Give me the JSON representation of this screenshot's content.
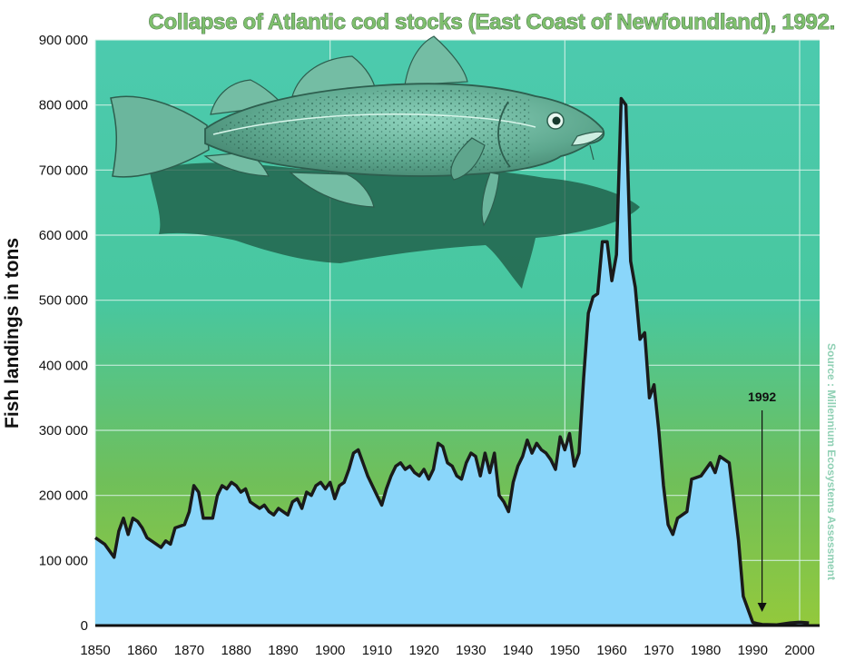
{
  "chart_data": {
    "type": "area",
    "title": "Collapse of Atlantic cod stocks (East Coast of Newfoundland), 1992.",
    "ylabel": "Fish landings in tons",
    "xlabel": "",
    "source": "Source : Millennium Ecosystems Assessment",
    "annotation": {
      "label": "1992",
      "x": 1992
    },
    "xlim": [
      1850,
      2003
    ],
    "ylim": [
      0,
      900000
    ],
    "x_ticks": [
      1850,
      1860,
      1870,
      1880,
      1890,
      1900,
      1910,
      1920,
      1930,
      1940,
      1950,
      1960,
      1970,
      1980,
      1990,
      2000
    ],
    "y_ticks": [
      0,
      100000,
      200000,
      300000,
      400000,
      500000,
      600000,
      700000,
      800000,
      900000
    ],
    "x_tick_labels": [
      "1850",
      "1860",
      "1870",
      "1880",
      "1890",
      "1900",
      "1910",
      "1920",
      "1930",
      "1940",
      "1950",
      "1960",
      "1970",
      "1980",
      "1990",
      "2000"
    ],
    "y_tick_labels": [
      "0",
      "100 000",
      "200 000",
      "300 000",
      "400 000",
      "500 000",
      "600 000",
      "700 000",
      "800 000",
      "900 000"
    ],
    "grid": true,
    "colors": {
      "area_fill": "#8ad6fa",
      "line": "#1a1a1a",
      "background_top": "#49c9ae",
      "background_bottom": "#8cc63e",
      "grid": "#d8f2e8"
    },
    "series": [
      {
        "values": [
          [
            1850,
            135000
          ],
          [
            1852,
            125000
          ],
          [
            1854,
            105000
          ],
          [
            1855,
            145000
          ],
          [
            1856,
            165000
          ],
          [
            1857,
            140000
          ],
          [
            1858,
            165000
          ],
          [
            1859,
            160000
          ],
          [
            1860,
            150000
          ],
          [
            1861,
            135000
          ],
          [
            1863,
            125000
          ],
          [
            1864,
            120000
          ],
          [
            1865,
            130000
          ],
          [
            1866,
            125000
          ],
          [
            1867,
            150000
          ],
          [
            1869,
            155000
          ],
          [
            1870,
            175000
          ],
          [
            1871,
            215000
          ],
          [
            1872,
            205000
          ],
          [
            1873,
            165000
          ],
          [
            1875,
            165000
          ],
          [
            1876,
            200000
          ],
          [
            1877,
            215000
          ],
          [
            1878,
            210000
          ],
          [
            1879,
            220000
          ],
          [
            1880,
            215000
          ],
          [
            1881,
            205000
          ],
          [
            1882,
            210000
          ],
          [
            1883,
            190000
          ],
          [
            1884,
            185000
          ],
          [
            1885,
            180000
          ],
          [
            1886,
            185000
          ],
          [
            1887,
            175000
          ],
          [
            1888,
            170000
          ],
          [
            1889,
            180000
          ],
          [
            1890,
            175000
          ],
          [
            1891,
            170000
          ],
          [
            1892,
            190000
          ],
          [
            1893,
            195000
          ],
          [
            1894,
            180000
          ],
          [
            1895,
            205000
          ],
          [
            1896,
            200000
          ],
          [
            1897,
            215000
          ],
          [
            1898,
            220000
          ],
          [
            1899,
            210000
          ],
          [
            1900,
            220000
          ],
          [
            1901,
            195000
          ],
          [
            1902,
            215000
          ],
          [
            1903,
            220000
          ],
          [
            1904,
            240000
          ],
          [
            1905,
            265000
          ],
          [
            1906,
            270000
          ],
          [
            1907,
            250000
          ],
          [
            1908,
            230000
          ],
          [
            1909,
            215000
          ],
          [
            1910,
            200000
          ],
          [
            1911,
            185000
          ],
          [
            1912,
            210000
          ],
          [
            1913,
            230000
          ],
          [
            1914,
            245000
          ],
          [
            1915,
            250000
          ],
          [
            1916,
            240000
          ],
          [
            1917,
            245000
          ],
          [
            1918,
            235000
          ],
          [
            1919,
            230000
          ],
          [
            1920,
            240000
          ],
          [
            1921,
            225000
          ],
          [
            1922,
            240000
          ],
          [
            1923,
            280000
          ],
          [
            1924,
            275000
          ],
          [
            1925,
            250000
          ],
          [
            1926,
            245000
          ],
          [
            1927,
            230000
          ],
          [
            1928,
            225000
          ],
          [
            1929,
            250000
          ],
          [
            1930,
            265000
          ],
          [
            1931,
            260000
          ],
          [
            1932,
            230000
          ],
          [
            1933,
            265000
          ],
          [
            1934,
            235000
          ],
          [
            1935,
            265000
          ],
          [
            1936,
            200000
          ],
          [
            1937,
            190000
          ],
          [
            1938,
            175000
          ],
          [
            1939,
            220000
          ],
          [
            1940,
            245000
          ],
          [
            1941,
            260000
          ],
          [
            1942,
            285000
          ],
          [
            1943,
            265000
          ],
          [
            1944,
            280000
          ],
          [
            1945,
            270000
          ],
          [
            1946,
            265000
          ],
          [
            1947,
            255000
          ],
          [
            1948,
            240000
          ],
          [
            1949,
            290000
          ],
          [
            1950,
            270000
          ],
          [
            1951,
            295000
          ],
          [
            1952,
            245000
          ],
          [
            1953,
            265000
          ],
          [
            1954,
            380000
          ],
          [
            1955,
            480000
          ],
          [
            1956,
            505000
          ],
          [
            1957,
            510000
          ],
          [
            1958,
            590000
          ],
          [
            1959,
            590000
          ],
          [
            1960,
            530000
          ],
          [
            1961,
            570000
          ],
          [
            1962,
            810000
          ],
          [
            1963,
            800000
          ],
          [
            1964,
            560000
          ],
          [
            1965,
            520000
          ],
          [
            1966,
            440000
          ],
          [
            1967,
            450000
          ],
          [
            1968,
            350000
          ],
          [
            1969,
            370000
          ],
          [
            1970,
            300000
          ],
          [
            1971,
            215000
          ],
          [
            1972,
            155000
          ],
          [
            1973,
            140000
          ],
          [
            1974,
            165000
          ],
          [
            1976,
            175000
          ],
          [
            1977,
            225000
          ],
          [
            1979,
            230000
          ],
          [
            1981,
            250000
          ],
          [
            1982,
            235000
          ],
          [
            1983,
            260000
          ],
          [
            1985,
            250000
          ],
          [
            1986,
            190000
          ],
          [
            1987,
            130000
          ],
          [
            1988,
            45000
          ],
          [
            1989,
            25000
          ],
          [
            1990,
            5000
          ],
          [
            1991,
            3000
          ],
          [
            1992,
            1500
          ],
          [
            1995,
            1000
          ],
          [
            1998,
            4000
          ],
          [
            2000,
            5000
          ],
          [
            2002,
            4000
          ]
        ]
      }
    ]
  }
}
